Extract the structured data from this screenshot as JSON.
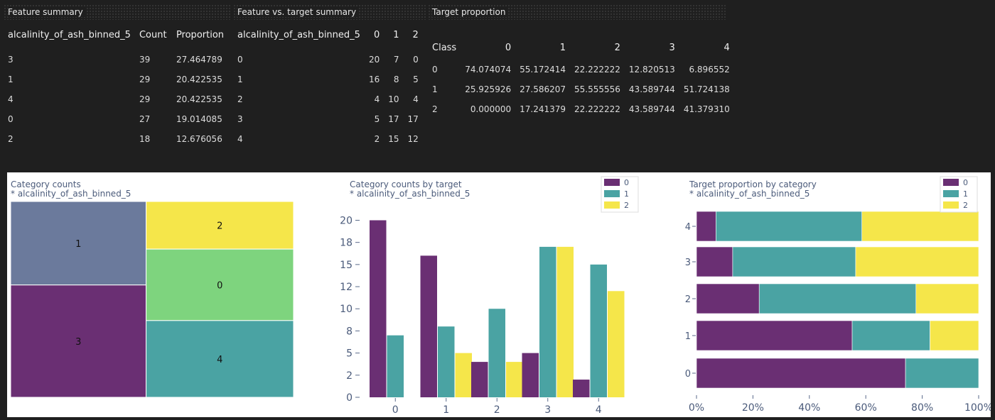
{
  "feature_summary": {
    "title": "Feature summary",
    "columns": [
      "alcalinity_of_ash_binned_5",
      "Count",
      "Proportion"
    ],
    "rows": [
      [
        "3",
        "39",
        "27.464789"
      ],
      [
        "1",
        "29",
        "20.422535"
      ],
      [
        "4",
        "29",
        "20.422535"
      ],
      [
        "0",
        "27",
        "19.014085"
      ],
      [
        "2",
        "18",
        "12.676056"
      ]
    ]
  },
  "feature_target_summary": {
    "title": "Feature vs. target summary",
    "columns": [
      "alcalinity_of_ash_binned_5",
      "0",
      "1",
      "2"
    ],
    "rows": [
      [
        "0",
        "20",
        "7",
        "0"
      ],
      [
        "1",
        "16",
        "8",
        "5"
      ],
      [
        "2",
        "4",
        "10",
        "4"
      ],
      [
        "3",
        "5",
        "17",
        "17"
      ],
      [
        "4",
        "2",
        "15",
        "12"
      ]
    ]
  },
  "target_proportion": {
    "title": "Target proportion",
    "columns": [
      "Class",
      "0",
      "1",
      "2",
      "3",
      "4"
    ],
    "rows": [
      [
        "0",
        "74.074074",
        "55.172414",
        "22.222222",
        "12.820513",
        "6.896552"
      ],
      [
        "1",
        "25.925926",
        "27.586207",
        "55.555556",
        "43.589744",
        "51.724138"
      ],
      [
        "2",
        "0.000000",
        "17.241379",
        "22.222222",
        "43.589744",
        "41.379310"
      ]
    ]
  },
  "colors": {
    "class0": "#6a2f73",
    "class1": "#4aa3a3",
    "class2": "#f5e64a",
    "cat0": "#7ed47e",
    "cat1": "#6b7a9c",
    "cat2": "#f5e64a",
    "cat3": "#6a2f73",
    "cat4": "#4aa3a3"
  },
  "chart_data": [
    {
      "type": "treemap",
      "title": "Category counts",
      "subtitle": "* alcalinity_of_ash_binned_5",
      "categories": [
        "1",
        "3",
        "2",
        "0",
        "4"
      ],
      "values": [
        29,
        39,
        18,
        27,
        29
      ]
    },
    {
      "type": "bar",
      "title": "Category counts by target",
      "subtitle": "* alcalinity_of_ash_binned_5",
      "categories": [
        "0",
        "1",
        "2",
        "3",
        "4"
      ],
      "series": [
        {
          "name": "0",
          "values": [
            20,
            16,
            4,
            5,
            2
          ]
        },
        {
          "name": "1",
          "values": [
            7,
            8,
            10,
            17,
            15
          ]
        },
        {
          "name": "2",
          "values": [
            0,
            5,
            4,
            17,
            12
          ]
        }
      ],
      "yticks": [
        "0",
        "2",
        "5",
        "8",
        "10",
        "12",
        "15",
        "18",
        "20"
      ],
      "ylim": [
        0,
        21
      ],
      "legend": "top-right"
    },
    {
      "type": "bar",
      "orientation": "horizontal-stacked",
      "title": "Target proportion by category",
      "subtitle": "* alcalinity_of_ash_binned_5",
      "categories": [
        "0",
        "1",
        "2",
        "3",
        "4"
      ],
      "series": [
        {
          "name": "0",
          "values": [
            74.074074,
            55.172414,
            22.222222,
            12.820513,
            6.896552
          ]
        },
        {
          "name": "1",
          "values": [
            25.925926,
            27.586207,
            55.555556,
            43.589744,
            51.724138
          ]
        },
        {
          "name": "2",
          "values": [
            0.0,
            17.241379,
            22.222222,
            43.589744,
            41.37931
          ]
        }
      ],
      "xticks": [
        "0%",
        "20%",
        "40%",
        "60%",
        "80%",
        "100%"
      ],
      "xlim": [
        0,
        100
      ],
      "legend": "top-right"
    }
  ]
}
